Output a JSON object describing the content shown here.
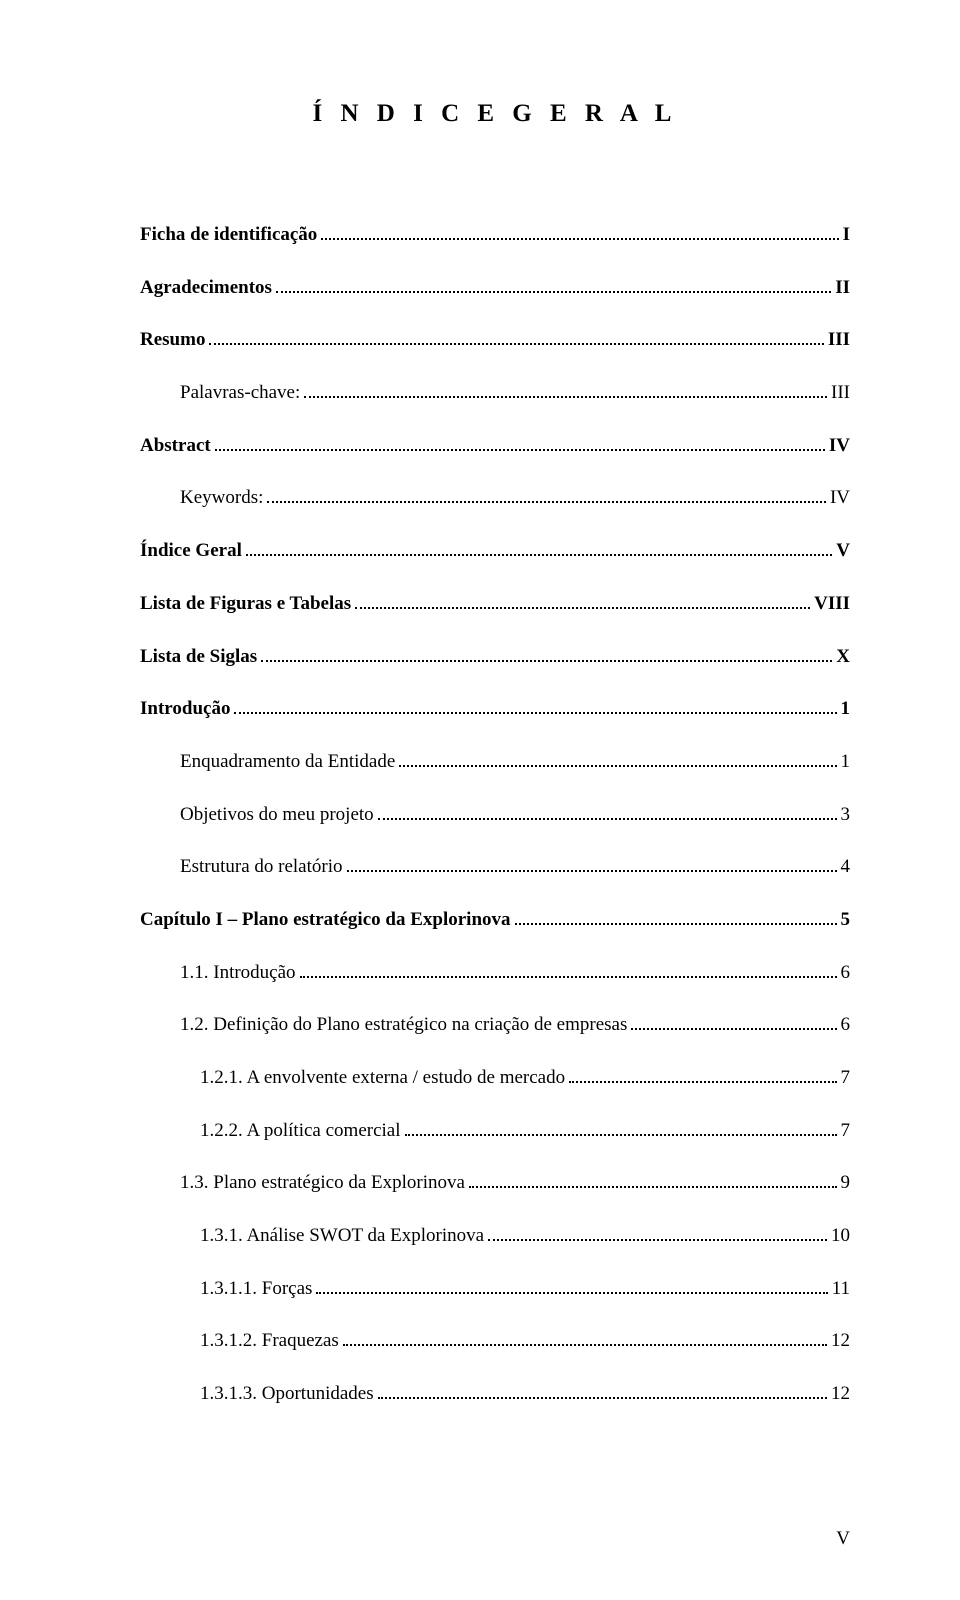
{
  "title": "Í N D I C E   G E R A L",
  "page_number": "V",
  "entries": [
    {
      "label": "Ficha de identificação",
      "page": "I",
      "bold": true,
      "indent": 0
    },
    {
      "label": "Agradecimentos",
      "page": "II",
      "bold": true,
      "indent": 0
    },
    {
      "label": "Resumo",
      "page": "III",
      "bold": true,
      "indent": 0
    },
    {
      "label": "Palavras-chave:",
      "page": "III",
      "bold": false,
      "indent": 1
    },
    {
      "label": "Abstract",
      "page": "IV",
      "bold": true,
      "indent": 0
    },
    {
      "label": "Keywords:",
      "page": "IV",
      "bold": false,
      "indent": 1
    },
    {
      "label": "Índice Geral",
      "page": "V",
      "bold": true,
      "indent": 0
    },
    {
      "label": "Lista de Figuras e Tabelas",
      "page": "VIII",
      "bold": true,
      "indent": 0
    },
    {
      "label": "Lista de Siglas",
      "page": "X",
      "bold": true,
      "indent": 0
    },
    {
      "label": "Introdução",
      "page": "1",
      "bold": true,
      "indent": 0
    },
    {
      "label": "Enquadramento da Entidade",
      "page": "1",
      "bold": false,
      "indent": 1
    },
    {
      "label": "Objetivos do meu projeto",
      "page": "3",
      "bold": false,
      "indent": 1
    },
    {
      "label": "Estrutura do relatório",
      "page": "4",
      "bold": false,
      "indent": 1
    },
    {
      "label": "Capítulo I – Plano estratégico da Explorinova",
      "page": "5",
      "bold": true,
      "indent": 0
    },
    {
      "label": "1.1.    Introdução",
      "page": "6",
      "bold": false,
      "indent": 1
    },
    {
      "label": "1.2.    Definição do Plano estratégico na criação de empresas",
      "page": "6",
      "bold": false,
      "indent": 1
    },
    {
      "label": "1.2.1.    A envolvente externa / estudo de mercado",
      "page": "7",
      "bold": false,
      "indent": 2
    },
    {
      "label": "1.2.2.    A política comercial",
      "page": "7",
      "bold": false,
      "indent": 2
    },
    {
      "label": "1.3.    Plano estratégico da Explorinova",
      "page": "9",
      "bold": false,
      "indent": 1
    },
    {
      "label": "1.3.1.    Análise SWOT da Explorinova",
      "page": "10",
      "bold": false,
      "indent": 2
    },
    {
      "label": "1.3.1.1.    Forças",
      "page": "11",
      "bold": false,
      "indent": 2
    },
    {
      "label": "1.3.1.2.    Fraquezas",
      "page": "12",
      "bold": false,
      "indent": 2
    },
    {
      "label": "1.3.1.3.    Oportunidades",
      "page": "12",
      "bold": false,
      "indent": 2
    }
  ]
}
